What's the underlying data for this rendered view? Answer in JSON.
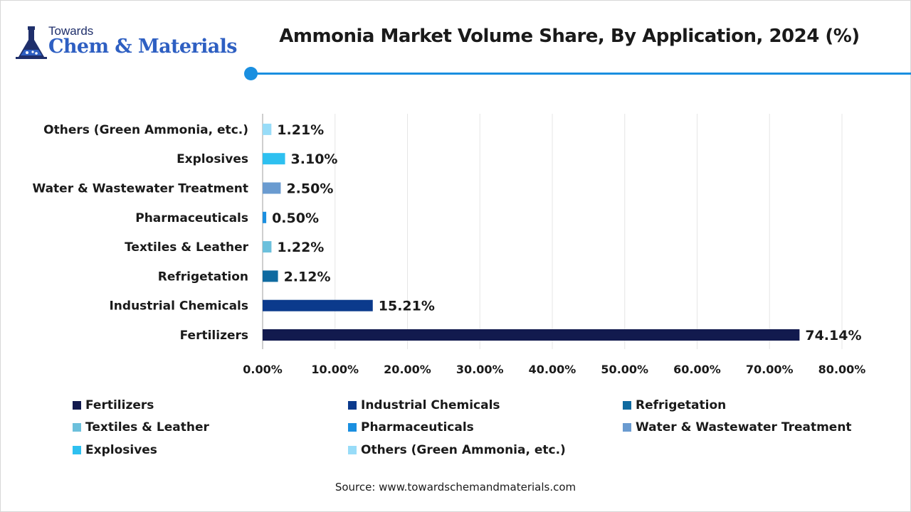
{
  "logo": {
    "top_text": "Towards",
    "main_text": "Chem & Materials"
  },
  "title": "Ammonia Market Volume Share, By Application, 2024 (%)",
  "source": "Source: www.towardschemandmaterials.com",
  "chart_data": {
    "type": "bar",
    "orientation": "horizontal",
    "title": "Ammonia Market Volume Share, By Application, 2024 (%)",
    "categories": [
      "Fertilizers",
      "Industrial Chemicals",
      "Refrigetation",
      "Textiles & Leather",
      "Pharmaceuticals",
      "Water & Wastewater Treatment",
      "Explosives",
      "Others (Green Ammonia, etc.)"
    ],
    "values": [
      74.14,
      15.21,
      2.12,
      1.22,
      0.5,
      2.5,
      3.1,
      1.21
    ],
    "value_labels": [
      "74.14%",
      "15.21%",
      "2.12%",
      "1.22%",
      "0.50%",
      "2.50%",
      "3.10%",
      "1.21%"
    ],
    "colors": [
      "#121a4e",
      "#0b3a8c",
      "#0f6aa0",
      "#6cc0dc",
      "#1a8fe0",
      "#6a9bd0",
      "#2ec0f0",
      "#98dcf8"
    ],
    "xlim": [
      0,
      80
    ],
    "xticks": [
      0,
      10,
      20,
      30,
      40,
      50,
      60,
      70,
      80
    ],
    "xtick_labels": [
      "0.00%",
      "10.00%",
      "20.00%",
      "30.00%",
      "40.00%",
      "50.00%",
      "60.00%",
      "70.00%",
      "80.00%"
    ],
    "xlabel": "",
    "ylabel": "",
    "grid": true,
    "legend_position": "bottom"
  }
}
